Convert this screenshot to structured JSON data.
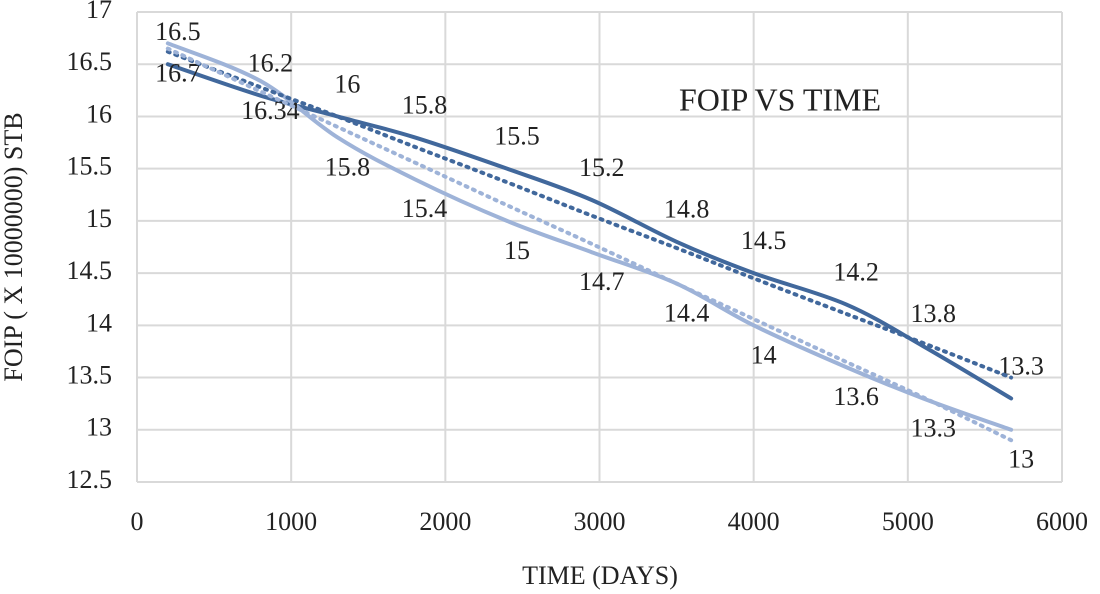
{
  "chart_data": {
    "type": "line",
    "title": "FOIP VS TIME",
    "x_label": "TIME (DAYS)",
    "y_label": "FOIP ( X 10000000) STB",
    "x": [
      200,
      800,
      1300,
      1800,
      2400,
      2950,
      3500,
      4000,
      4600,
      5100,
      5670
    ],
    "series": [
      {
        "color": "#41689c",
        "values": [
          16.5,
          16.2,
          16,
          15.8,
          15.5,
          15.2,
          14.8,
          14.5,
          14.2,
          13.8,
          13.3
        ],
        "labels_position": "above"
      },
      {
        "color": "#9eb3d8",
        "values": [
          16.7,
          16.34,
          15.8,
          15.4,
          15,
          14.7,
          14.4,
          14,
          13.6,
          13.3,
          13
        ],
        "labels_position": "below"
      },
      {
        "color": "#41689c",
        "values": [
          16.62,
          16.28,
          16.0,
          15.71,
          15.37,
          15.05,
          14.74,
          14.45,
          14.11,
          13.83,
          13.5
        ],
        "dotted": true
      },
      {
        "color": "#9eb3d8",
        "values": [
          16.65,
          16.24,
          15.9,
          15.56,
          15.15,
          14.78,
          14.4,
          14.06,
          13.65,
          13.31,
          12.9
        ],
        "dotted": true
      }
    ],
    "xlim": [
      0,
      6000
    ],
    "xticks": [
      0,
      1000,
      2000,
      3000,
      4000,
      5000,
      6000
    ],
    "ylim": [
      12.5,
      17
    ],
    "yticks": [
      12.5,
      13,
      13.5,
      14,
      14.5,
      15,
      15.5,
      16,
      16.5,
      17
    ],
    "grid": true
  }
}
